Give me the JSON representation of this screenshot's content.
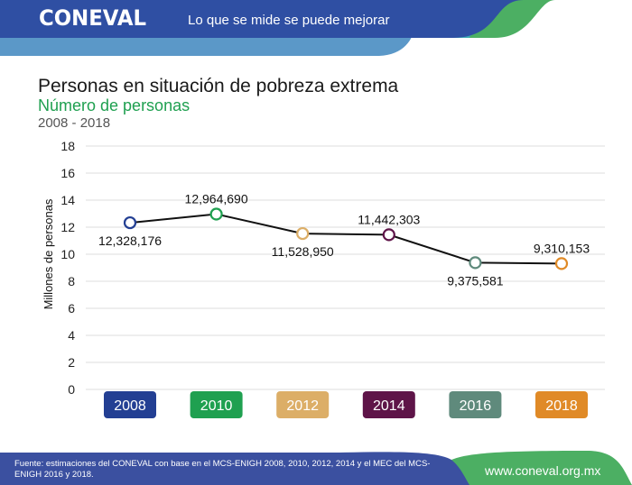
{
  "header": {
    "logo": "CONEVAL",
    "tagline": "Lo que se mide se puede mejorar"
  },
  "chart_data": {
    "type": "line",
    "title": "Personas en situación de pobreza extrema",
    "subtitle": "Número de personas",
    "period": "2008 - 2018",
    "xlabel": "",
    "ylabel": "Millones de personas",
    "ylim": [
      0,
      18
    ],
    "yticks": [
      0,
      2,
      4,
      6,
      8,
      10,
      12,
      14,
      16,
      18
    ],
    "grid": true,
    "categories": [
      "2008",
      "2010",
      "2012",
      "2014",
      "2016",
      "2018"
    ],
    "values": [
      12.328176,
      12.96469,
      11.52895,
      11.442303,
      9.375581,
      9.310153
    ],
    "data_labels": [
      "12,328,176",
      "12,964,690",
      "11,528,950",
      "11,442,303",
      "9,375,581",
      "9,310,153"
    ],
    "label_positions": [
      "below",
      "above",
      "below",
      "above",
      "below",
      "above"
    ],
    "point_colors": [
      "#233f93",
      "#1fa050",
      "#dcae67",
      "#5e1448",
      "#5f8a7c",
      "#e08a27"
    ],
    "line_color": "#111111"
  },
  "footer": {
    "source": "Fuente: estimaciones del CONEVAL con base en el MCS-ENIGH 2008, 2010, 2012, 2014 y el MEC del MCS-ENIGH 2016 y 2018.",
    "url": "www.coneval.org.mx"
  }
}
